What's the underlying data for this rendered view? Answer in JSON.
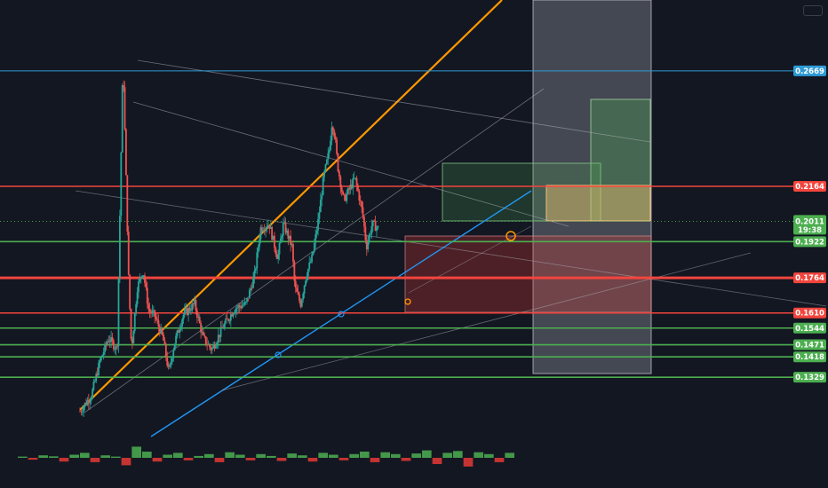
{
  "chart_data": {
    "type": "candlestick",
    "y_axis_scale": "linear",
    "grid": false,
    "legend": "none",
    "horizontal_levels": [
      {
        "price": 0.2669,
        "label": "0.2669",
        "color": "#2e9bd6"
      },
      {
        "price": 0.2164,
        "label": "0.2164",
        "color": "#f2453d"
      },
      {
        "price": 0.1922,
        "label": "0.1922",
        "color": "#4caf50"
      },
      {
        "price": 0.1764,
        "label": "0.1764",
        "color": "#f2453d"
      },
      {
        "price": 0.161,
        "label": "0.1610",
        "color": "#f2453d"
      },
      {
        "price": 0.1544,
        "label": "0.1544",
        "color": "#4caf50"
      },
      {
        "price": 0.1471,
        "label": "0.1471",
        "color": "#4caf50"
      },
      {
        "price": 0.1418,
        "label": "0.1418",
        "color": "#4caf50"
      },
      {
        "price": 0.1329,
        "label": "0.1329",
        "color": "#4caf50"
      }
    ],
    "last_price": {
      "price": 0.2011,
      "label": "0.2011",
      "countdown": "19:38",
      "color": "#4caf50"
    },
    "price_path": [
      [
        0.0,
        0.118
      ],
      [
        0.02,
        0.125
      ],
      [
        0.035,
        0.14
      ],
      [
        0.05,
        0.15
      ],
      [
        0.065,
        0.145
      ],
      [
        0.075,
        0.272
      ],
      [
        0.08,
        0.225
      ],
      [
        0.085,
        0.175
      ],
      [
        0.09,
        0.145
      ],
      [
        0.1,
        0.172
      ],
      [
        0.11,
        0.18
      ],
      [
        0.12,
        0.162
      ],
      [
        0.13,
        0.16
      ],
      [
        0.145,
        0.15
      ],
      [
        0.155,
        0.135
      ],
      [
        0.165,
        0.148
      ],
      [
        0.18,
        0.16
      ],
      [
        0.2,
        0.165
      ],
      [
        0.215,
        0.15
      ],
      [
        0.23,
        0.145
      ],
      [
        0.25,
        0.155
      ],
      [
        0.27,
        0.163
      ],
      [
        0.29,
        0.165
      ],
      [
        0.305,
        0.178
      ],
      [
        0.315,
        0.198
      ],
      [
        0.33,
        0.2
      ],
      [
        0.345,
        0.185
      ],
      [
        0.355,
        0.2
      ],
      [
        0.37,
        0.19
      ],
      [
        0.375,
        0.172
      ],
      [
        0.385,
        0.165
      ],
      [
        0.395,
        0.178
      ],
      [
        0.405,
        0.185
      ],
      [
        0.415,
        0.2
      ],
      [
        0.425,
        0.22
      ],
      [
        0.435,
        0.232
      ],
      [
        0.44,
        0.245
      ],
      [
        0.445,
        0.238
      ],
      [
        0.45,
        0.225
      ],
      [
        0.46,
        0.21
      ],
      [
        0.47,
        0.215
      ],
      [
        0.48,
        0.22
      ],
      [
        0.487,
        0.212
      ],
      [
        0.493,
        0.205
      ],
      [
        0.5,
        0.19
      ],
      [
        0.505,
        0.195
      ],
      [
        0.51,
        0.2
      ],
      [
        0.52,
        0.198
      ]
    ],
    "volume": [
      0.1,
      0.15,
      0.2,
      0.12,
      0.3,
      0.25,
      0.4,
      0.35,
      0.2,
      0.1,
      0.6,
      0.9,
      0.5,
      0.3,
      0.25,
      0.4,
      0.2,
      0.15,
      0.3,
      0.35,
      0.45,
      0.25,
      0.2,
      0.3,
      0.15,
      0.25,
      0.35,
      0.2,
      0.3,
      0.4,
      0.25,
      0.2,
      0.3,
      0.5,
      0.35,
      0.45,
      0.3,
      0.25,
      0.35,
      0.6,
      0.5,
      0.4,
      0.55,
      0.7,
      0.45,
      0.3,
      0.35,
      0.4
    ]
  }
}
